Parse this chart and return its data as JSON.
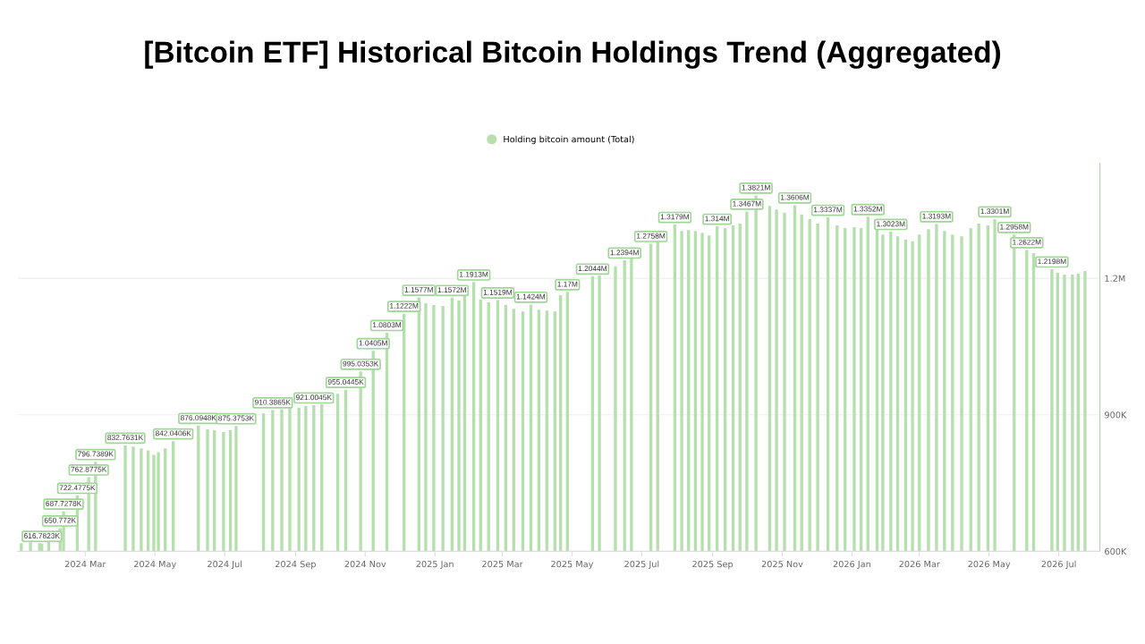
{
  "chart_data": {
    "type": "bar",
    "title": "[Bitcoin ETF] Historical Bitcoin Holdings Trend (Aggregated)",
    "x": [
      "2024-01-05",
      "2024-01-13",
      "2024-01-21",
      "2024-01-23",
      "2024-01-29",
      "2024-02-08",
      "2024-02-11",
      "2024-02-23",
      "2024-03-04",
      "2024-03-10",
      "2024-04-05",
      "2024-04-12",
      "2024-04-19",
      "2024-04-25",
      "2024-04-30",
      "2024-05-04",
      "2024-05-10",
      "2024-05-17",
      "2024-06-08",
      "2024-06-16",
      "2024-06-22",
      "2024-06-30",
      "2024-07-06",
      "2024-07-11",
      "2024-08-04",
      "2024-08-12",
      "2024-08-20",
      "2024-08-27",
      "2024-09-04",
      "2024-09-10",
      "2024-09-17",
      "2024-09-24",
      "2024-10-08",
      "2024-10-15",
      "2024-10-28",
      "2024-11-08",
      "2024-11-20",
      "2024-12-05",
      "2024-12-18",
      "2024-12-24",
      "2024-12-31",
      "2025-01-08",
      "2025-01-16",
      "2025-01-22",
      "2025-01-27",
      "2025-02-04",
      "2025-02-10",
      "2025-02-17",
      "2025-02-25",
      "2025-03-04",
      "2025-03-11",
      "2025-03-19",
      "2025-03-26",
      "2025-04-02",
      "2025-04-09",
      "2025-04-16",
      "2025-04-21",
      "2025-04-27",
      "2025-05-19",
      "2025-05-25",
      "2025-06-08",
      "2025-06-16",
      "2025-06-22",
      "2025-07-09",
      "2025-07-15",
      "2025-07-30",
      "2025-08-05",
      "2025-08-11",
      "2025-08-17",
      "2025-08-23",
      "2025-08-29",
      "2025-09-05",
      "2025-09-12",
      "2025-09-19",
      "2025-09-25",
      "2025-10-01",
      "2025-10-09",
      "2025-10-21",
      "2025-10-27",
      "2025-11-03",
      "2025-11-12",
      "2025-11-18",
      "2025-11-25",
      "2025-12-02",
      "2025-12-11",
      "2025-12-19",
      "2025-12-26",
      "2026-01-03",
      "2026-01-09",
      "2026-01-15",
      "2026-01-23",
      "2026-01-28",
      "2026-02-04",
      "2026-02-10",
      "2026-02-17",
      "2026-02-23",
      "2026-03-01",
      "2026-03-09",
      "2026-03-16",
      "2026-03-23",
      "2026-03-30",
      "2026-04-07",
      "2026-04-15",
      "2026-04-22",
      "2026-04-30",
      "2026-05-06",
      "2026-05-23",
      "2026-06-03",
      "2026-06-09",
      "2026-06-25",
      "2026-06-30",
      "2026-07-06",
      "2026-07-13",
      "2026-07-18",
      "2026-07-24"
    ],
    "series": [
      {
        "name": "Holding bitcoin amount (Total)",
        "color": "#b5e0ad",
        "values": [
          618000,
          620000,
          618000,
          616782.3,
          622000,
          650772,
          687727.8,
          722477.5,
          762877.5,
          796738.9,
          832763.1,
          830000,
          826000,
          822000,
          812000,
          818000,
          826000,
          842040.6,
          876094.8,
          868000,
          866000,
          862000,
          866000,
          875375.3,
          903000,
          910386.5,
          912000,
          915000,
          915000,
          919000,
          921004.5,
          923000,
          946000,
          955044.5,
          995035.3,
          1040500,
          1080300,
          1122200,
          1157700,
          1145000,
          1141000,
          1139000,
          1157200,
          1151000,
          1163000,
          1191300,
          1153000,
          1147000,
          1151900,
          1141000,
          1133000,
          1127000,
          1142400,
          1131000,
          1129000,
          1127000,
          1163000,
          1170000,
          1204400,
          1206000,
          1226000,
          1239400,
          1245000,
          1275800,
          1281000,
          1317900,
          1304000,
          1306000,
          1304000,
          1300000,
          1294000,
          1314000,
          1310000,
          1316000,
          1320000,
          1346700,
          1382100,
          1359000,
          1351000,
          1344000,
          1360600,
          1340000,
          1330000,
          1320000,
          1333700,
          1316000,
          1310000,
          1312000,
          1310000,
          1335200,
          1308000,
          1296000,
          1302300,
          1292000,
          1285000,
          1281000,
          1296000,
          1308000,
          1319300,
          1304000,
          1296000,
          1292000,
          1310000,
          1320000,
          1316000,
          1330100,
          1295800,
          1262200,
          1255000,
          1219800,
          1212000,
          1208000,
          1208000,
          1210000,
          1216000
        ],
        "value_labels": [
          null,
          null,
          null,
          "616.7823K",
          null,
          "650.772K",
          "687.7278K",
          "722.4775K",
          "762.8775K",
          "796.7389K",
          "832.7631K",
          null,
          null,
          null,
          null,
          null,
          null,
          "842.0406K",
          "876.0948K",
          null,
          null,
          null,
          null,
          "875.3753K",
          null,
          "910.3865K",
          null,
          null,
          null,
          null,
          "921.0045K",
          null,
          null,
          "955.0445K",
          "995.0353K",
          "1.0405M",
          "1.0803M",
          "1.1222M",
          "1.1577M",
          null,
          null,
          null,
          "1.1572M",
          null,
          null,
          "1.1913M",
          null,
          null,
          "1.1519M",
          null,
          null,
          null,
          "1.1424M",
          null,
          null,
          null,
          null,
          "1.17M",
          "1.2044M",
          null,
          null,
          "1.2394M",
          null,
          "1.2758M",
          null,
          "1.3179M",
          null,
          null,
          null,
          null,
          null,
          "1.314M",
          null,
          null,
          null,
          "1.3467M",
          "1.3821M",
          null,
          null,
          null,
          "1.3606M",
          null,
          null,
          null,
          "1.3337M",
          null,
          null,
          null,
          null,
          "1.3352M",
          null,
          null,
          "1.3023M",
          null,
          null,
          null,
          null,
          null,
          "1.3193M",
          null,
          null,
          null,
          null,
          null,
          null,
          "1.3301M",
          "1.2958M",
          "1.2622M",
          null,
          "1.2198M",
          null,
          null,
          null,
          null,
          null
        ]
      }
    ],
    "xlim": [
      "2024-01-02",
      "2026-08-06"
    ],
    "xticks": [
      {
        "value": "2024-03-01",
        "label": "2024 Mar"
      },
      {
        "value": "2024-05-01",
        "label": "2024 May"
      },
      {
        "value": "2024-07-01",
        "label": "2024 Jul"
      },
      {
        "value": "2024-09-01",
        "label": "2024 Sep"
      },
      {
        "value": "2024-11-01",
        "label": "2024 Nov"
      },
      {
        "value": "2025-01-01",
        "label": "2025 Jan"
      },
      {
        "value": "2025-03-01",
        "label": "2025 Mar"
      },
      {
        "value": "2025-05-01",
        "label": "2025 May"
      },
      {
        "value": "2025-07-01",
        "label": "2025 Jul"
      },
      {
        "value": "2025-09-01",
        "label": "2025 Sep"
      },
      {
        "value": "2025-11-01",
        "label": "2025 Nov"
      },
      {
        "value": "2026-01-01",
        "label": "2026 Jan"
      },
      {
        "value": "2026-03-01",
        "label": "2026 Mar"
      },
      {
        "value": "2026-05-01",
        "label": "2026 May"
      },
      {
        "value": "2026-07-01",
        "label": "2026 Jul"
      }
    ],
    "ylim": [
      600000,
      1452000
    ],
    "yticks": [
      {
        "value": 600000,
        "label": "600K"
      },
      {
        "value": 900000,
        "label": "900K"
      },
      {
        "value": 1200000,
        "label": "1.2M"
      }
    ],
    "grid": "y",
    "legend": "top"
  }
}
